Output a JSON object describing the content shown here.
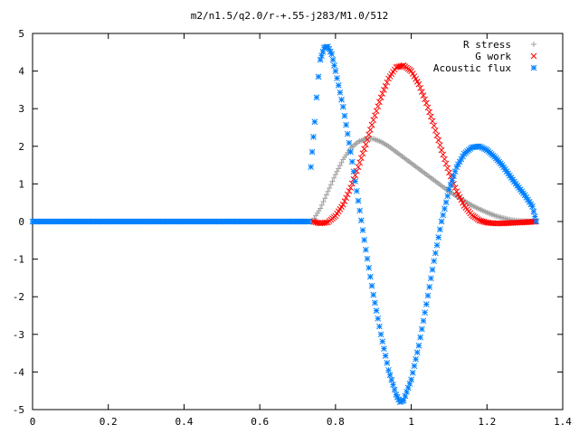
{
  "chart_data": {
    "type": "scatter",
    "title": "m2/n1.5/q2.0/r-+.55-j283/M1.0/512",
    "xlabel": "",
    "ylabel": "",
    "xlim": [
      0,
      1.4
    ],
    "ylim": [
      -5,
      5
    ],
    "x_ticks": [
      "0",
      "0.2",
      "0.4",
      "0.6",
      "0.8",
      "1",
      "1.2",
      "1.4"
    ],
    "y_ticks": [
      "5",
      "4",
      "3",
      "2",
      "1",
      "0",
      "-1",
      "-2",
      "-3",
      "-4",
      "-5"
    ],
    "grid": false,
    "legend_position": "top-right",
    "series": [
      {
        "name": "R stress",
        "marker": "+",
        "color": "#a0a0a0",
        "points": [
          [
            0.74,
            0.02
          ],
          [
            0.76,
            0.35
          ],
          [
            0.78,
            0.8
          ],
          [
            0.8,
            1.25
          ],
          [
            0.82,
            1.65
          ],
          [
            0.84,
            1.95
          ],
          [
            0.86,
            2.12
          ],
          [
            0.88,
            2.2
          ],
          [
            0.9,
            2.2
          ],
          [
            0.92,
            2.12
          ],
          [
            0.94,
            2.0
          ],
          [
            0.96,
            1.85
          ],
          [
            0.98,
            1.7
          ],
          [
            1.0,
            1.55
          ],
          [
            1.02,
            1.4
          ],
          [
            1.04,
            1.25
          ],
          [
            1.06,
            1.1
          ],
          [
            1.08,
            0.95
          ],
          [
            1.1,
            0.8
          ],
          [
            1.12,
            0.67
          ],
          [
            1.14,
            0.55
          ],
          [
            1.16,
            0.43
          ],
          [
            1.18,
            0.33
          ],
          [
            1.2,
            0.24
          ],
          [
            1.22,
            0.16
          ],
          [
            1.24,
            0.1
          ],
          [
            1.26,
            0.05
          ],
          [
            1.28,
            0.02
          ],
          [
            1.3,
            0.01
          ],
          [
            1.33,
            0.0
          ]
        ]
      },
      {
        "name": "G work",
        "marker": "x",
        "color": "#ff0000",
        "points": [
          [
            0.74,
            0.0
          ],
          [
            0.76,
            -0.05
          ],
          [
            0.78,
            -0.02
          ],
          [
            0.8,
            0.15
          ],
          [
            0.82,
            0.45
          ],
          [
            0.84,
            0.9
          ],
          [
            0.86,
            1.45
          ],
          [
            0.88,
            2.05
          ],
          [
            0.9,
            2.7
          ],
          [
            0.92,
            3.3
          ],
          [
            0.94,
            3.8
          ],
          [
            0.96,
            4.1
          ],
          [
            0.98,
            4.15
          ],
          [
            1.0,
            4.0
          ],
          [
            1.02,
            3.65
          ],
          [
            1.04,
            3.15
          ],
          [
            1.06,
            2.55
          ],
          [
            1.08,
            1.9
          ],
          [
            1.1,
            1.3
          ],
          [
            1.12,
            0.8
          ],
          [
            1.14,
            0.42
          ],
          [
            1.16,
            0.17
          ],
          [
            1.18,
            0.03
          ],
          [
            1.2,
            -0.03
          ],
          [
            1.22,
            -0.05
          ],
          [
            1.24,
            -0.05
          ],
          [
            1.26,
            -0.04
          ],
          [
            1.28,
            -0.03
          ],
          [
            1.3,
            -0.02
          ],
          [
            1.33,
            0.0
          ]
        ]
      },
      {
        "name": "Acoustic flux",
        "marker": "*",
        "color": "#0080ff",
        "points": [
          [
            0.0,
            0.0
          ],
          [
            0.1,
            0.0
          ],
          [
            0.2,
            0.0
          ],
          [
            0.3,
            0.0
          ],
          [
            0.4,
            0.0
          ],
          [
            0.5,
            0.0
          ],
          [
            0.6,
            0.0
          ],
          [
            0.7,
            0.0
          ],
          [
            0.73,
            0.0
          ],
          [
            0.735,
            1.45
          ],
          [
            0.745,
            2.65
          ],
          [
            0.75,
            3.3
          ],
          [
            0.755,
            3.85
          ],
          [
            0.76,
            4.3
          ],
          [
            0.77,
            4.62
          ],
          [
            0.78,
            4.65
          ],
          [
            0.79,
            4.45
          ],
          [
            0.8,
            4.0
          ],
          [
            0.82,
            3.05
          ],
          [
            0.84,
            1.85
          ],
          [
            0.86,
            0.55
          ],
          [
            0.88,
            -0.75
          ],
          [
            0.9,
            -1.95
          ],
          [
            0.92,
            -3.0
          ],
          [
            0.94,
            -3.95
          ],
          [
            0.96,
            -4.6
          ],
          [
            0.97,
            -4.8
          ],
          [
            0.98,
            -4.75
          ],
          [
            1.0,
            -4.2
          ],
          [
            1.02,
            -3.3
          ],
          [
            1.04,
            -2.2
          ],
          [
            1.06,
            -1.05
          ],
          [
            1.08,
            0.0
          ],
          [
            1.1,
            0.85
          ],
          [
            1.12,
            1.45
          ],
          [
            1.14,
            1.8
          ],
          [
            1.16,
            1.97
          ],
          [
            1.18,
            2.0
          ],
          [
            1.2,
            1.9
          ],
          [
            1.22,
            1.72
          ],
          [
            1.24,
            1.5
          ],
          [
            1.26,
            1.22
          ],
          [
            1.28,
            0.95
          ],
          [
            1.3,
            0.7
          ],
          [
            1.32,
            0.4
          ],
          [
            1.33,
            0.0
          ]
        ]
      }
    ]
  }
}
